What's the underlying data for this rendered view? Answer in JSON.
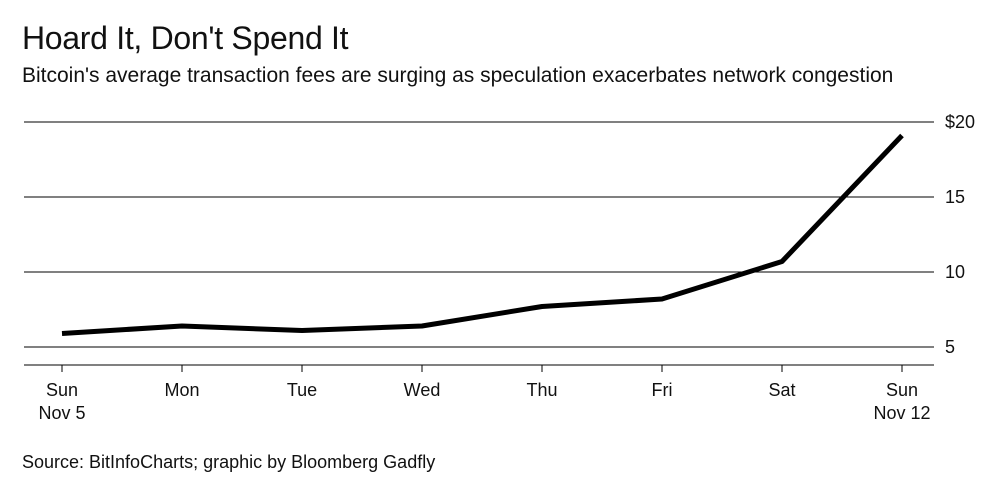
{
  "header": {
    "title": "Hoard It, Don't Spend It",
    "subtitle": "Bitcoin's average transaction fees are surging as speculation exacerbates network congestion"
  },
  "footer": {
    "source": "Source: BitInfoCharts; graphic by Bloomberg Gadfly"
  },
  "colors": {
    "line": "#000000",
    "grid": "#000000",
    "text": "#111111",
    "background": "#ffffff"
  },
  "chart_data": {
    "type": "line",
    "title": "Hoard It, Don't Spend It",
    "subtitle": "Bitcoin's average transaction fees are surging as speculation exacerbates network congestion",
    "xlabel": "",
    "ylabel": "",
    "x": [
      "Sun Nov 5",
      "Mon",
      "Tue",
      "Wed",
      "Thu",
      "Fri",
      "Sat",
      "Sun Nov 12"
    ],
    "x_tick_labels": [
      [
        "Sun",
        "Nov 5"
      ],
      [
        "Mon"
      ],
      [
        "Tue"
      ],
      [
        "Wed"
      ],
      [
        "Thu"
      ],
      [
        "Fri"
      ],
      [
        "Sat"
      ],
      [
        "Sun",
        "Nov 12"
      ]
    ],
    "series": [
      {
        "values": [
          5.9,
          6.4,
          6.1,
          6.4,
          7.7,
          8.2,
          10.7,
          19.1
        ]
      }
    ],
    "ylim": [
      4,
      21
    ],
    "y_ticks": [
      5,
      10,
      15,
      20
    ],
    "y_tick_labels": [
      "5",
      "10",
      "15",
      "$20"
    ],
    "y_axis_side": "right",
    "grid": true
  }
}
